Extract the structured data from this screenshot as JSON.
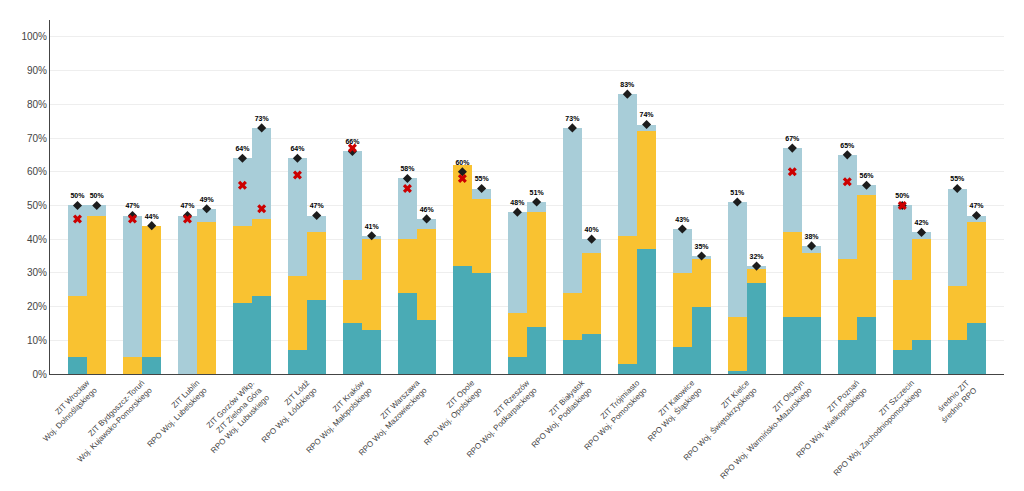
{
  "chart_data": {
    "type": "bar",
    "stacked": true,
    "grid": true,
    "data_labels": true,
    "categories": [
      "ZIT Wrocław\nWoj. Dolnośląskiego",
      null,
      "ZIT Bydgoszcz-Toruń\nWoj. Kujawsko-Pomorskiego",
      null,
      "ZIT Lublin\nRPO Woj. Lubelskiego",
      null,
      "ZIT Gorzów Wlkp.\nZIT Zielona Góra\nRPO Woj. Lubuskiego",
      null,
      "ZIT Łódź\nRPO Woj. Łódzkiego",
      null,
      "ZIT Kraków\nRPO Woj. Małopolskiego",
      null,
      "ZIT Warszawa\nRPO Woj. Mazowieckiego",
      null,
      "ZIT Opole\nRPO Woj. Opolskiego",
      null,
      "ZIT Rzeszów\nRPO Woj. Podkarpackiego",
      null,
      "ZIT Białystok\nRPO Woj. Podlaskiego",
      null,
      "ZIT Trójmiasto\nRPO Woj. Pomorskiego",
      null,
      "ZIT Katowice\nRPO Woj. Śląskiego",
      null,
      "ZIT Kielce\nRPO Woj. Świętokrzyskiego",
      null,
      "ZIT Olsztyn\nRPO Woj. Warmińsko-Mazurskiego",
      null,
      "ZIT Poznań\nRPO Woj. Wielkopolskiego",
      null,
      "ZIT Szczecin\nRPO Woj. Zachodniopomorskiego",
      null,
      "średnio ZIT\nśrednio RPO",
      null
    ],
    "series": [
      {
        "type": "bar",
        "color": "#4AABB5",
        "values": [
          5,
          0,
          0,
          5,
          0,
          0,
          21,
          23,
          7,
          22,
          15,
          13,
          24,
          16,
          32,
          30,
          5,
          14,
          10,
          12,
          3,
          37,
          8,
          20,
          1,
          27,
          17,
          17,
          10,
          17,
          7,
          10,
          10,
          15
        ]
      },
      {
        "type": "bar",
        "color": "#F9C231",
        "values": [
          18,
          47,
          5,
          39,
          0,
          45,
          23,
          23,
          22,
          20,
          13,
          27,
          16,
          27,
          30,
          22,
          13,
          34,
          14,
          24,
          38,
          35,
          22,
          14,
          16,
          4,
          25,
          19,
          24,
          36,
          21,
          30,
          16,
          30
        ]
      },
      {
        "type": "bar",
        "color": "#A8CDD8",
        "values": [
          27,
          3,
          42,
          0,
          47,
          4,
          20,
          27,
          35,
          5,
          38,
          1,
          18,
          3,
          0,
          3,
          30,
          3,
          49,
          4,
          42,
          2,
          13,
          1,
          34,
          1,
          25,
          2,
          31,
          3,
          22,
          2,
          29,
          2
        ]
      },
      {
        "type": "scatter",
        "marker": "diamond",
        "color": "#1C1C1C",
        "values": [
          50,
          50,
          47,
          44,
          47,
          49,
          64,
          73,
          64,
          47,
          66,
          41,
          58,
          46,
          60,
          55,
          48,
          51,
          73,
          40,
          83,
          74,
          43,
          35,
          51,
          32,
          67,
          38,
          65,
          56,
          50,
          42,
          55,
          47
        ],
        "value_labels": [
          "50%",
          "50%",
          "47%",
          "44%",
          "47%",
          "49%",
          "64%",
          "73%",
          "64%",
          "47%",
          "66%",
          "41%",
          "58%",
          "46%",
          "60%",
          "55%",
          "48%",
          "51%",
          "73%",
          "40%",
          "83%",
          "74%",
          "43%",
          "35%",
          "51%",
          "32%",
          "67%",
          "38%",
          "65%",
          "56%",
          "50%",
          "42%",
          "55%",
          "47%"
        ]
      },
      {
        "type": "scatter",
        "marker": "x",
        "color": "#CC0000",
        "values": [
          46,
          null,
          46,
          null,
          46,
          null,
          56,
          49,
          59,
          null,
          67,
          null,
          55,
          null,
          58,
          null,
          null,
          null,
          null,
          null,
          null,
          null,
          null,
          null,
          null,
          null,
          60,
          null,
          57,
          null,
          50,
          null,
          null,
          null
        ]
      }
    ],
    "ylim": [
      0,
      105
    ],
    "yticks": [
      {
        "value": 0,
        "label": "0%"
      },
      {
        "value": 10,
        "label": "10%"
      },
      {
        "value": 20,
        "label": "20%"
      },
      {
        "value": 30,
        "label": "30%"
      },
      {
        "value": 40,
        "label": "40%"
      },
      {
        "value": 50,
        "label": "50%"
      },
      {
        "value": 60,
        "label": "60%"
      },
      {
        "value": 70,
        "label": "70%"
      },
      {
        "value": 80,
        "label": "80%"
      },
      {
        "value": 90,
        "label": "90%"
      },
      {
        "value": 100,
        "label": "100%"
      }
    ]
  }
}
